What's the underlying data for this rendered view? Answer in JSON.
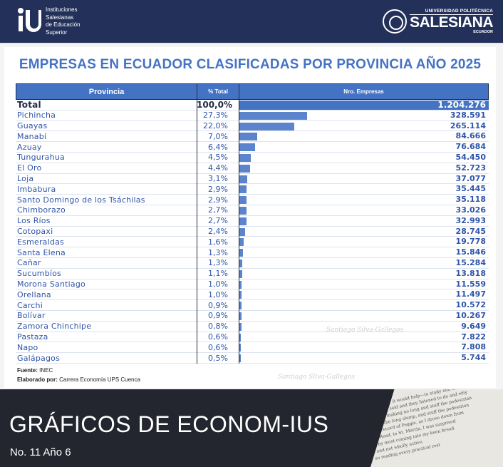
{
  "header": {
    "left_logo_lines": [
      "Instituciones",
      "Salesianas",
      "de Educación",
      "Superior"
    ],
    "right_logo_top": "UNIVERSIDAD POLITÉCNICA",
    "right_logo_main": "SALESIANA",
    "right_logo_bottom": "ECUADOR"
  },
  "chart_data": {
    "type": "bar",
    "title": "EMPRESAS EN ECUADOR CLASIFICADAS POR PROVINCIA AÑO 2025",
    "columns": [
      "Provincia",
      "% Total",
      "Nro. Empresas"
    ],
    "total": {
      "label": "Total",
      "pct": "100,0%",
      "value": 1204276,
      "value_label": "1.204.276"
    },
    "categories": [
      "Pichincha",
      "Guayas",
      "Manabí",
      "Azuay",
      "Tungurahua",
      "El Oro",
      "Loja",
      "Imbabura",
      "Santo Domingo de los Tsáchilas",
      "Chimborazo",
      "Los Ríos",
      "Cotopaxi",
      "Esmeraldas",
      "Santa Elena",
      "Cañar",
      "Sucumbíos",
      "Morona Santiago",
      "Orellana",
      "Carchi",
      "Bolívar",
      "Zamora Chinchipe",
      "Pastaza",
      "Napo",
      "Galápagos"
    ],
    "pct_labels": [
      "27,3%",
      "22,0%",
      "7,0%",
      "6,4%",
      "4,5%",
      "4,4%",
      "3,1%",
      "2,9%",
      "2,9%",
      "2,7%",
      "2,7%",
      "2,4%",
      "1,6%",
      "1,3%",
      "1,3%",
      "1,1%",
      "1,0%",
      "1,0%",
      "0,9%",
      "0,9%",
      "0,8%",
      "0,6%",
      "0,6%",
      "0,5%"
    ],
    "values": [
      328591,
      265114,
      84666,
      76684,
      54450,
      52723,
      37077,
      35445,
      35118,
      33026,
      32993,
      28745,
      19778,
      15846,
      15284,
      13818,
      11559,
      11497,
      10572,
      10267,
      9649,
      7822,
      7808,
      5744
    ],
    "value_labels": [
      "328.591",
      "265.114",
      "84.666",
      "76.684",
      "54.450",
      "52.723",
      "37.077",
      "35.445",
      "35.118",
      "33.026",
      "32.993",
      "28.745",
      "19.778",
      "15.846",
      "15.284",
      "13.818",
      "11.559",
      "11.497",
      "10.572",
      "10.267",
      "9.649",
      "7.822",
      "7.808",
      "5.744"
    ],
    "bar_color": "#5b84cc",
    "header_color": "#4473c4"
  },
  "source": {
    "label": "Fuente:",
    "value": "INEC"
  },
  "credit": {
    "label": "Elaborado por:",
    "value": "Carrera Economía UPS Cuenca"
  },
  "watermark": "Santiago Silva-Gallegos",
  "footer": {
    "title": "GRÁFICOS DE ECONOM-IUS",
    "subtitle": "No. 11 Año 6"
  }
}
